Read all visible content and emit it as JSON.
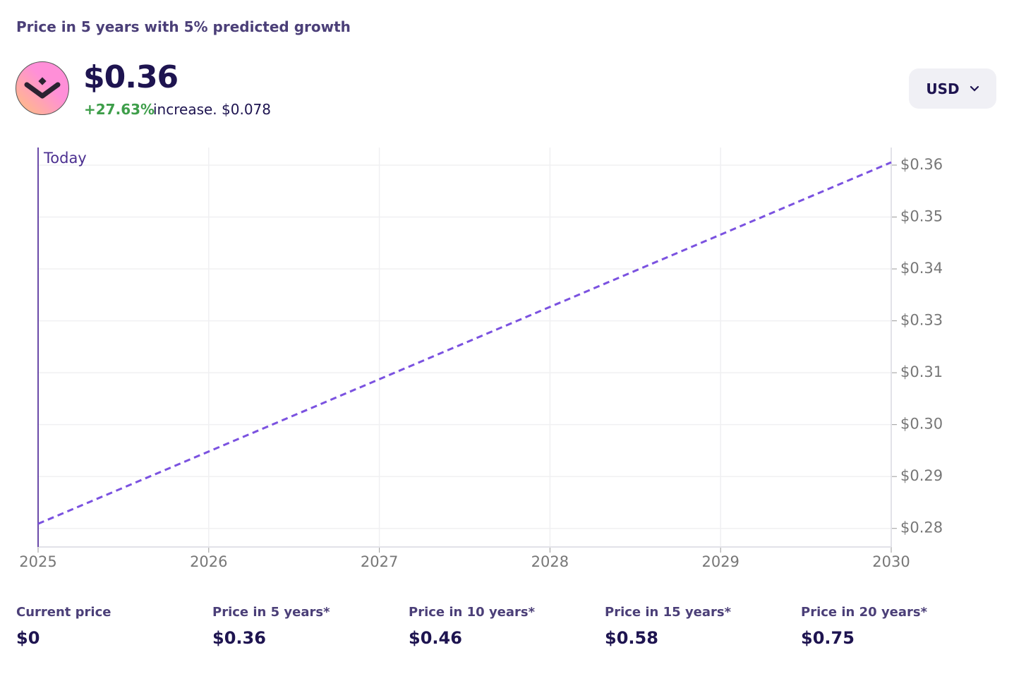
{
  "header": {
    "title": "Price in 5 years with 5% predicted growth",
    "price": "$0.36",
    "change": "+27.63%",
    "change_text": "increase. $0.078",
    "currency": "USD"
  },
  "chart_data": {
    "type": "line",
    "annotation": "Today",
    "x": [
      2025,
      2030
    ],
    "series": [
      {
        "color": "#7b52e0",
        "values": [
          0.282,
          0.36
        ]
      }
    ],
    "line_style": "dashed",
    "xlim": [
      2025,
      2030
    ],
    "xticks": [
      2025,
      2026,
      2027,
      2028,
      2029,
      2030
    ],
    "ylim": [
      0.277,
      0.3632
    ],
    "yticks": [
      {
        "value": 0.281,
        "label": "$0.28"
      },
      {
        "value": 0.2922,
        "label": "$0.29"
      },
      {
        "value": 0.3034,
        "label": "$0.30"
      },
      {
        "value": 0.3146,
        "label": "$0.31"
      },
      {
        "value": 0.3258,
        "label": "$0.33"
      },
      {
        "value": 0.337,
        "label": "$0.34"
      },
      {
        "value": 0.3482,
        "label": "$0.35"
      },
      {
        "value": 0.3594,
        "label": "$0.36"
      }
    ],
    "grid": true
  },
  "stats": [
    {
      "label": "Current price",
      "value": "$0"
    },
    {
      "label": "Price in 5 years*",
      "value": "$0.36"
    },
    {
      "label": "Price in 10 years*",
      "value": "$0.46"
    },
    {
      "label": "Price in 15 years*",
      "value": "$0.58"
    },
    {
      "label": "Price in 20 years*",
      "value": "$0.75"
    }
  ]
}
